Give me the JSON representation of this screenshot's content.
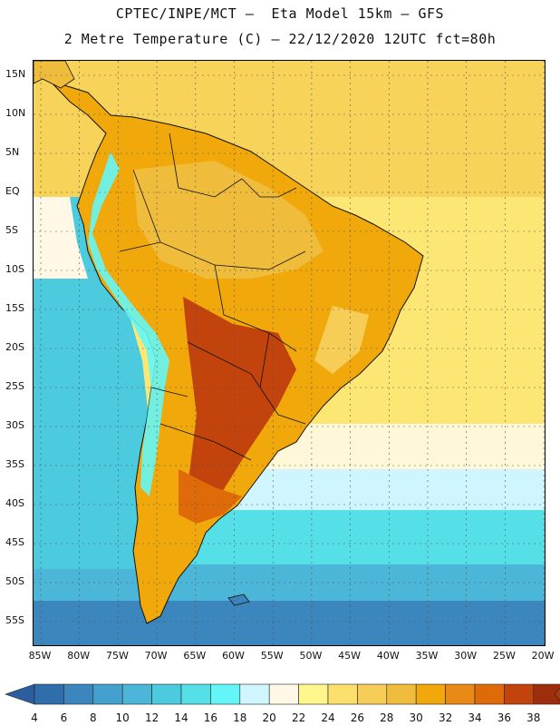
{
  "header": {
    "line1": "CPTEC/INPE/MCT –  Eta Model 15km – GFS",
    "line2": "2 Metre Temperature (C) – 22/12/2020 12UTC fct=80h"
  },
  "map": {
    "variable": "2 Metre Temperature",
    "units": "C",
    "lat_labels": [
      "15N",
      "10N",
      "5N",
      "EQ",
      "5S",
      "10S",
      "15S",
      "20S",
      "25S",
      "30S",
      "35S",
      "40S",
      "45S",
      "50S",
      "55S"
    ],
    "lon_labels": [
      "85W",
      "80W",
      "75W",
      "70W",
      "65W",
      "60W",
      "55W",
      "50W",
      "45W",
      "40W",
      "35W",
      "30W",
      "25W",
      "20W"
    ]
  },
  "legend": {
    "labels": [
      "4",
      "6",
      "8",
      "10",
      "12",
      "14",
      "16",
      "18",
      "20",
      "22",
      "24",
      "26",
      "28",
      "30",
      "32",
      "34",
      "36",
      "38"
    ],
    "colors": [
      "#2f6eab",
      "#3a86bd",
      "#44a0cc",
      "#4bb6d8",
      "#4ccbdf",
      "#55dfe7",
      "#64f6f6",
      "#cff6ff",
      "#fff8e6",
      "#fff68e",
      "#fde06b",
      "#f6cd57",
      "#efbc3c",
      "#f0a80a",
      "#e98a17",
      "#de6a0a",
      "#c2430b",
      "#9e2e0b"
    ],
    "low_color": "#2a5e9e",
    "high_color": "#a43a10"
  }
}
